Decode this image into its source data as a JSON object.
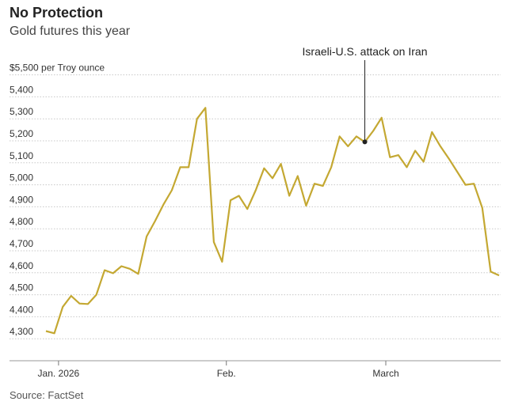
{
  "chart_data": {
    "type": "line",
    "title": "No Protection",
    "subtitle": "Gold futures this year",
    "source": "Source: FactSet",
    "ylabel": "",
    "xlabel": "",
    "y_unit_label": "$5,500 per Troy ounce",
    "ylim": [
      4200,
      5500
    ],
    "y_ticks": [
      4300,
      4400,
      4500,
      4600,
      4700,
      4800,
      4900,
      5000,
      5100,
      5200,
      5300,
      5400
    ],
    "y_tick_labels": [
      "4,300",
      "4,400",
      "4,500",
      "4,600",
      "4,700",
      "4,800",
      "4,900",
      "5,000",
      "5,100",
      "5,200",
      "5,300",
      "5,400"
    ],
    "x_ticks": [
      {
        "label": "Jan. 2026",
        "index": 1.5
      },
      {
        "label": "Feb.",
        "index": 21.5
      },
      {
        "label": "March",
        "index": 40.5
      }
    ],
    "grid": true,
    "line_color": "#c4a832",
    "series": [
      {
        "name": "",
        "values": [
          4335,
          4325,
          4445,
          4495,
          4460,
          4458,
          4500,
          4612,
          4598,
          4630,
          4618,
          4595,
          4765,
          4835,
          4910,
          4975,
          5080,
          5080,
          5300,
          5350,
          4740,
          4650,
          4930,
          4950,
          4890,
          4975,
          5075,
          5030,
          5095,
          4950,
          5040,
          4905,
          5005,
          4995,
          5080,
          5220,
          5175,
          5220,
          5195,
          5245,
          5305,
          5125,
          5135,
          5080,
          5155,
          5105,
          5240,
          5175,
          5120,
          5060,
          5000,
          5005,
          4895,
          4605,
          4588
        ]
      }
    ],
    "annotations": [
      {
        "text": "Israeli-U.S. attack on Iran",
        "index": 38
      }
    ]
  }
}
